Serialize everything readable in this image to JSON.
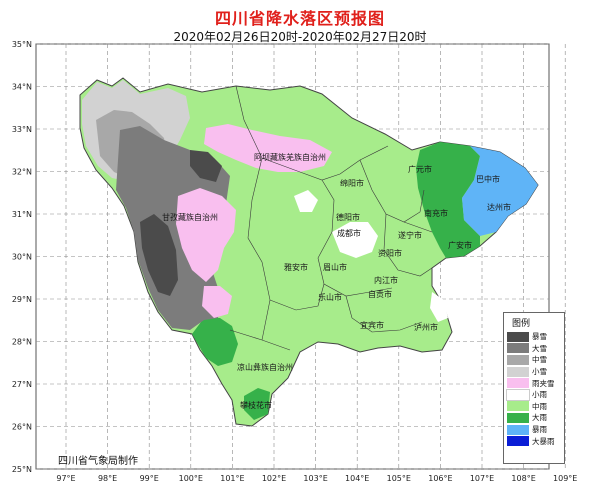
{
  "title": "四川省降水落区预报图",
  "subtitle": "2020年02月26日20时-2020年02月27日20时",
  "footer": "四川省气象局制作",
  "latitudes": [
    "35°N",
    "34°N",
    "33°N",
    "32°N",
    "31°N",
    "30°N",
    "29°N",
    "28°N",
    "27°N",
    "26°N",
    "25°N"
  ],
  "longitudes": [
    "97°E",
    "98°E",
    "99°E",
    "100°E",
    "101°E",
    "102°E",
    "103°E",
    "104°E",
    "105°E",
    "106°E",
    "107°E",
    "108°E",
    "109°E"
  ],
  "cities": [
    {
      "name": "阿坝藏族羌族自治州"
    },
    {
      "name": "甘孜藏族自治州"
    },
    {
      "name": "绵阳市"
    },
    {
      "name": "广元市"
    },
    {
      "name": "巴中市"
    },
    {
      "name": "德阳市"
    },
    {
      "name": "南充市"
    },
    {
      "name": "达州市"
    },
    {
      "name": "成都市"
    },
    {
      "name": "遂宁市"
    },
    {
      "name": "广安市"
    },
    {
      "name": "资阳市"
    },
    {
      "name": "眉山市"
    },
    {
      "name": "雅安市"
    },
    {
      "name": "内江市"
    },
    {
      "name": "乐山市"
    },
    {
      "name": "自贡市"
    },
    {
      "name": "宜宾市"
    },
    {
      "name": "泸州市"
    },
    {
      "name": "凉山彝族自治州"
    },
    {
      "name": "攀枝花市"
    }
  ],
  "legend": {
    "title": "图例",
    "items": [
      {
        "label": "暴雪",
        "color": "#4b4b4b"
      },
      {
        "label": "大雪",
        "color": "#7c7c7c"
      },
      {
        "label": "中雪",
        "color": "#a8a8a8"
      },
      {
        "label": "小雪",
        "color": "#d2d2d2"
      },
      {
        "label": "雨夹雪",
        "color": "#f9bfef"
      },
      {
        "label": "小雨",
        "color": "#ffffff"
      },
      {
        "label": "中雨",
        "color": "#a7ec8b"
      },
      {
        "label": "大雨",
        "color": "#36b14a"
      },
      {
        "label": "暴雨",
        "color": "#5fb4f7"
      },
      {
        "label": "大暴雨",
        "color": "#0b1ed6"
      }
    ]
  }
}
